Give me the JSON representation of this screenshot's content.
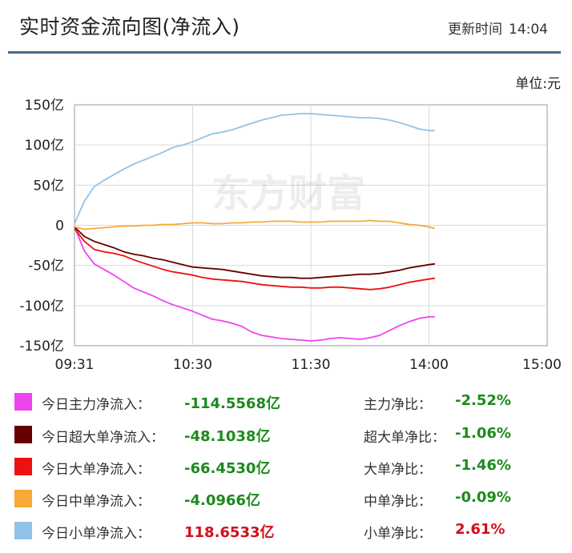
{
  "header": {
    "title": "实时资金流向图(净流入)",
    "update_label": "更新时间",
    "update_time": "14:04"
  },
  "unit_label": "单位:元",
  "watermark": "东方财富",
  "chart_data": {
    "type": "line",
    "title": "实时资金流向图(净流入)",
    "ylabel": "单位:元",
    "xlabel": "",
    "ylim": [
      -150,
      150
    ],
    "y_ticks": [
      "150亿",
      "100亿",
      "50亿",
      "0",
      "-50亿",
      "-100亿",
      "-150亿"
    ],
    "y_tick_values": [
      150,
      100,
      50,
      0,
      -50,
      -100,
      -150
    ],
    "x_ticks": [
      "09:31",
      "10:30",
      "11:30",
      "14:00",
      "15:00"
    ],
    "x_tick_minutes": [
      0,
      60,
      120,
      180,
      240
    ],
    "grid": true,
    "x_minutes": [
      0,
      5,
      10,
      15,
      20,
      25,
      30,
      35,
      40,
      45,
      50,
      55,
      60,
      65,
      70,
      75,
      80,
      85,
      90,
      95,
      100,
      105,
      110,
      115,
      120,
      125,
      130,
      135,
      140,
      145,
      150,
      155,
      160,
      165,
      170,
      175,
      180,
      183
    ],
    "series": [
      {
        "name": "今日主力净流入",
        "color": "#ee44ee",
        "values": [
          -2,
          -32,
          -48,
          -55,
          -62,
          -70,
          -78,
          -83,
          -88,
          -94,
          -99,
          -103,
          -107,
          -112,
          -117,
          -119,
          -122,
          -126,
          -133,
          -137,
          -139,
          -141,
          -142,
          -143,
          -144,
          -143,
          -141,
          -140,
          -141,
          -142,
          -140,
          -137,
          -131,
          -125,
          -120,
          -116,
          -114,
          -114
        ]
      },
      {
        "name": "今日超大单净流入",
        "color": "#660000",
        "values": [
          -2,
          -14,
          -20,
          -24,
          -28,
          -33,
          -36,
          -38,
          -41,
          -43,
          -46,
          -49,
          -52,
          -53,
          -54,
          -55,
          -57,
          -59,
          -61,
          -63,
          -64,
          -65,
          -65,
          -66,
          -66,
          -65,
          -64,
          -63,
          -62,
          -61,
          -61,
          -60,
          -58,
          -56,
          -53,
          -51,
          -49,
          -48
        ]
      },
      {
        "name": "今日大单净流入",
        "color": "#ee1111",
        "values": [
          -4,
          -20,
          -30,
          -33,
          -35,
          -38,
          -43,
          -47,
          -51,
          -55,
          -58,
          -60,
          -62,
          -65,
          -67,
          -68,
          -69,
          -70,
          -72,
          -74,
          -75,
          -76,
          -77,
          -77,
          -78,
          -78,
          -77,
          -77,
          -78,
          -79,
          -80,
          -79,
          -77,
          -74,
          -71,
          -69,
          -67,
          -66
        ]
      },
      {
        "name": "今日中单净流入",
        "color": "#f7a935",
        "values": [
          -2,
          -5,
          -4,
          -3,
          -2,
          -1,
          -1,
          0,
          0,
          1,
          1,
          2,
          3,
          3,
          2,
          2,
          3,
          3,
          4,
          4,
          5,
          5,
          5,
          4,
          4,
          4,
          5,
          5,
          5,
          5,
          6,
          5,
          5,
          3,
          1,
          0,
          -2,
          -4
        ]
      },
      {
        "name": "今日小单净流入",
        "color": "#91c3e8",
        "values": [
          2,
          30,
          48,
          56,
          63,
          70,
          76,
          81,
          86,
          91,
          97,
          100,
          104,
          109,
          114,
          116,
          119,
          123,
          127,
          131,
          134,
          137,
          138,
          139,
          139,
          138,
          137,
          136,
          135,
          134,
          134,
          133,
          131,
          128,
          124,
          120,
          118,
          118
        ]
      }
    ]
  },
  "legend": [
    {
      "swatch": "pink-square",
      "color": "#ee44ee",
      "label": "今日主力净流入：",
      "value": "-114.5568亿",
      "sign": "neg",
      "ratio_label": "主力净比：",
      "ratio": "-2.52%",
      "ratio_sign": "neg"
    },
    {
      "swatch": "darkred-square",
      "color": "#660000",
      "label": "今日超大单净流入：",
      "value": "-48.1038亿",
      "sign": "neg",
      "ratio_label": "超大单净比：",
      "ratio": "-1.06%",
      "ratio_sign": "neg"
    },
    {
      "swatch": "red-square",
      "color": "#ee1111",
      "label": "今日大单净流入：",
      "value": "-66.4530亿",
      "sign": "neg",
      "ratio_label": "大单净比：",
      "ratio": "-1.46%",
      "ratio_sign": "neg"
    },
    {
      "swatch": "orange-square",
      "color": "#f7a935",
      "label": "今日中单净流入：",
      "value": "-4.0966亿",
      "sign": "neg",
      "ratio_label": "中单净比：",
      "ratio": "-0.09%",
      "ratio_sign": "neg"
    },
    {
      "swatch": "lightblue-square",
      "color": "#91c3e8",
      "label": "今日小单净流入：",
      "value": "118.6533亿",
      "sign": "pos",
      "ratio_label": "小单净比：",
      "ratio": "2.61%",
      "ratio_sign": "pos"
    }
  ]
}
